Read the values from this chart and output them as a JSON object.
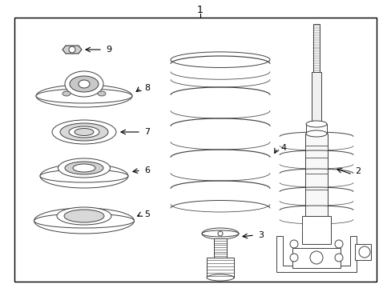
{
  "bg_color": "#ffffff",
  "line_color": "#404040",
  "fig_width": 4.89,
  "fig_height": 3.6,
  "dpi": 100,
  "font_size": 8,
  "labels": [
    "1",
    "2",
    "3",
    "4",
    "5",
    "6",
    "7",
    "8",
    "9"
  ]
}
